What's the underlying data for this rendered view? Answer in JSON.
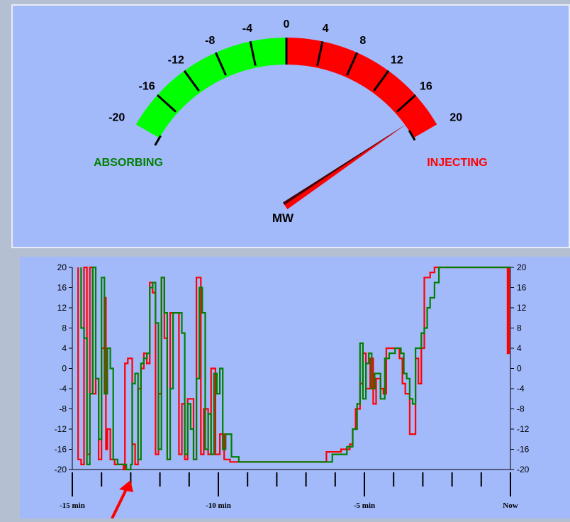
{
  "gauge": {
    "min": -20,
    "max": 20,
    "value": 18,
    "tick_values": [
      -20,
      -16,
      -12,
      -8,
      -4,
      0,
      4,
      8,
      12,
      16,
      20
    ],
    "tick_labels": [
      "-20",
      "-16",
      "-12",
      "-8",
      "-4",
      "0",
      "4",
      "8",
      "12",
      "16",
      "20"
    ],
    "unit": "MW",
    "left_label": "ABSORBING",
    "right_label": "INJECTING",
    "colors": {
      "negative": "#00ff00",
      "positive": "#ff0000",
      "left_text": "#008000",
      "right_text": "#ff0000",
      "needle": "#ff0000",
      "needle_shadow": "#4a0000"
    }
  },
  "chart_data": {
    "type": "line",
    "title": "",
    "xlabel": "",
    "ylabel": "",
    "xlim": [
      -15,
      0
    ],
    "ylim": [
      -20,
      20
    ],
    "y_ticks": [
      20,
      16,
      12,
      8,
      4,
      0,
      -4,
      -8,
      -12,
      -16,
      -20
    ],
    "y_tick_labels": [
      "20",
      "16",
      "12",
      "8",
      "4",
      "0",
      "-4",
      "-8",
      "-12",
      "-16",
      "-20"
    ],
    "x_tick_labels": [
      {
        "x": -15,
        "label": "-15 min"
      },
      {
        "x": -10,
        "label": "-10 min"
      },
      {
        "x": -5,
        "label": "-5 min"
      },
      {
        "x": 0,
        "label": "Now"
      }
    ],
    "x_minor_ticks": [
      -15,
      -14,
      -13,
      -12,
      -11,
      -10,
      -9,
      -8,
      -7,
      -6,
      -5,
      -4,
      -3,
      -2,
      -1,
      0
    ],
    "grid": false,
    "series": [
      {
        "color": "#ff0000",
        "points": [
          [
            -14.8,
            20
          ],
          [
            -14.8,
            -18
          ],
          [
            -14.7,
            -18
          ],
          [
            -14.7,
            -19
          ],
          [
            -14.6,
            -19
          ],
          [
            -14.6,
            20
          ],
          [
            -14.5,
            20
          ],
          [
            -14.5,
            -17
          ],
          [
            -14.4,
            -17
          ],
          [
            -14.4,
            20
          ],
          [
            -14.3,
            20
          ],
          [
            -14.3,
            -5
          ],
          [
            -14.2,
            -5
          ],
          [
            -14.2,
            -2
          ],
          [
            -14.1,
            -2
          ],
          [
            -14.1,
            -18
          ],
          [
            -14.0,
            -18
          ],
          [
            -14.0,
            4
          ],
          [
            -13.9,
            4
          ],
          [
            -13.9,
            14
          ],
          [
            -13.85,
            14
          ],
          [
            -13.85,
            -16
          ],
          [
            -13.8,
            -16
          ],
          [
            -13.8,
            -12
          ],
          [
            -13.7,
            -12
          ],
          [
            -13.7,
            -18
          ],
          [
            -13.55,
            -18
          ],
          [
            -13.55,
            -19
          ],
          [
            -13.25,
            -19
          ],
          [
            -13.25,
            -20
          ],
          [
            -13.2,
            -20
          ],
          [
            -13.2,
            1
          ],
          [
            -13.1,
            1
          ],
          [
            -13.1,
            2
          ],
          [
            -12.95,
            2
          ],
          [
            -12.95,
            -15
          ],
          [
            -12.85,
            -15
          ],
          [
            -12.85,
            -19
          ],
          [
            -12.75,
            -19
          ],
          [
            -12.75,
            -4
          ],
          [
            -12.65,
            -4
          ],
          [
            -12.65,
            0
          ],
          [
            -12.55,
            0
          ],
          [
            -12.55,
            3
          ],
          [
            -12.45,
            3
          ],
          [
            -12.45,
            1
          ],
          [
            -12.35,
            1
          ],
          [
            -12.35,
            17
          ],
          [
            -12.25,
            17
          ],
          [
            -12.25,
            15
          ],
          [
            -12.15,
            15
          ],
          [
            -12.15,
            -17
          ],
          [
            -12.05,
            -17
          ],
          [
            -12.05,
            -5
          ],
          [
            -11.95,
            -5
          ],
          [
            -11.95,
            18
          ],
          [
            -11.85,
            18
          ],
          [
            -11.85,
            6
          ],
          [
            -11.75,
            6
          ],
          [
            -11.75,
            -18
          ],
          [
            -11.65,
            -18
          ],
          [
            -11.65,
            11
          ],
          [
            -11.35,
            11
          ],
          [
            -11.35,
            -17
          ],
          [
            -11.25,
            -17
          ],
          [
            -11.25,
            -7
          ],
          [
            -11.15,
            -7
          ],
          [
            -11.15,
            -18
          ],
          [
            -11.05,
            -18
          ],
          [
            -11.05,
            -6
          ],
          [
            -10.85,
            -6
          ],
          [
            -10.85,
            -18
          ],
          [
            -10.75,
            -18
          ],
          [
            -10.75,
            18
          ],
          [
            -10.6,
            18
          ],
          [
            -10.6,
            -17
          ],
          [
            -10.5,
            -17
          ],
          [
            -10.5,
            -8
          ],
          [
            -10.35,
            -8
          ],
          [
            -10.35,
            -17
          ],
          [
            -10.25,
            -17
          ],
          [
            -10.25,
            0
          ],
          [
            -10.1,
            0
          ],
          [
            -10.1,
            -17
          ],
          [
            -9.95,
            -17
          ],
          [
            -9.95,
            -13
          ],
          [
            -9.8,
            -13
          ],
          [
            -9.8,
            -18
          ],
          [
            -9.6,
            -18
          ],
          [
            -9.6,
            -18.5
          ],
          [
            -6.3,
            -18.5
          ],
          [
            -6.3,
            -16.5
          ],
          [
            -5.8,
            -16.5
          ],
          [
            -5.8,
            -16
          ],
          [
            -5.5,
            -16
          ],
          [
            -5.5,
            -15
          ],
          [
            -5.4,
            -15
          ],
          [
            -5.4,
            -12
          ],
          [
            -5.3,
            -12
          ],
          [
            -5.3,
            -8
          ],
          [
            -5.15,
            -8
          ],
          [
            -5.15,
            -3
          ],
          [
            -5.05,
            -3
          ],
          [
            -5.05,
            3
          ],
          [
            -4.95,
            3
          ],
          [
            -4.95,
            -4
          ],
          [
            -4.8,
            -4
          ],
          [
            -4.8,
            2
          ],
          [
            -4.7,
            2
          ],
          [
            -4.7,
            -7
          ],
          [
            -4.6,
            -7
          ],
          [
            -4.6,
            -2
          ],
          [
            -4.45,
            -2
          ],
          [
            -4.45,
            -4
          ],
          [
            -4.35,
            -4
          ],
          [
            -4.35,
            -5
          ],
          [
            -4.25,
            -5
          ],
          [
            -4.25,
            4
          ],
          [
            -3.8,
            4
          ],
          [
            -3.8,
            2
          ],
          [
            -3.7,
            2
          ],
          [
            -3.7,
            -3
          ],
          [
            -3.6,
            -3
          ],
          [
            -3.6,
            -5
          ],
          [
            -3.45,
            -5
          ],
          [
            -3.45,
            -13
          ],
          [
            -3.25,
            -13
          ],
          [
            -3.25,
            2
          ],
          [
            -3.15,
            2
          ],
          [
            -3.15,
            -3
          ],
          [
            -3.05,
            -3
          ],
          [
            -3.05,
            4
          ],
          [
            -2.95,
            4
          ],
          [
            -2.95,
            18
          ],
          [
            -2.75,
            18
          ],
          [
            -2.75,
            19
          ],
          [
            -2.6,
            19
          ],
          [
            -2.6,
            20
          ],
          [
            -0.1,
            20
          ],
          [
            -0.1,
            3
          ],
          [
            -0.05,
            3
          ],
          [
            -0.05,
            20
          ],
          [
            0,
            20
          ]
        ]
      },
      {
        "color": "#008000",
        "points": [
          [
            -14.7,
            20
          ],
          [
            -14.7,
            8
          ],
          [
            -14.6,
            8
          ],
          [
            -14.6,
            6
          ],
          [
            -14.5,
            6
          ],
          [
            -14.5,
            -19
          ],
          [
            -14.4,
            -19
          ],
          [
            -14.4,
            -5
          ],
          [
            -14.3,
            -5
          ],
          [
            -14.3,
            20
          ],
          [
            -14.2,
            20
          ],
          [
            -14.2,
            -2
          ],
          [
            -14.1,
            -2
          ],
          [
            -14.1,
            -14
          ],
          [
            -14.0,
            -14
          ],
          [
            -14.0,
            18
          ],
          [
            -13.9,
            18
          ],
          [
            -13.9,
            -5
          ],
          [
            -13.8,
            -5
          ],
          [
            -13.8,
            4
          ],
          [
            -13.7,
            4
          ],
          [
            -13.7,
            0
          ],
          [
            -13.6,
            0
          ],
          [
            -13.6,
            -18
          ],
          [
            -13.45,
            -18
          ],
          [
            -13.45,
            -19
          ],
          [
            -13.15,
            -19
          ],
          [
            -13.15,
            -20
          ],
          [
            -13.0,
            -20
          ],
          [
            -13.0,
            -19
          ],
          [
            -12.95,
            -19
          ],
          [
            -12.95,
            -3
          ],
          [
            -12.85,
            -3
          ],
          [
            -12.85,
            -1
          ],
          [
            -12.75,
            -1
          ],
          [
            -12.75,
            -18
          ],
          [
            -12.65,
            -18
          ],
          [
            -12.65,
            1
          ],
          [
            -12.55,
            1
          ],
          [
            -12.55,
            2
          ],
          [
            -12.45,
            2
          ],
          [
            -12.45,
            3
          ],
          [
            -12.35,
            3
          ],
          [
            -12.35,
            16
          ],
          [
            -12.25,
            16
          ],
          [
            -12.25,
            17
          ],
          [
            -12.15,
            17
          ],
          [
            -12.15,
            9
          ],
          [
            -12.05,
            9
          ],
          [
            -12.05,
            -16
          ],
          [
            -11.95,
            -16
          ],
          [
            -11.95,
            18
          ],
          [
            -11.85,
            18
          ],
          [
            -11.85,
            11
          ],
          [
            -11.75,
            11
          ],
          [
            -11.75,
            -18
          ],
          [
            -11.65,
            -18
          ],
          [
            -11.65,
            -4
          ],
          [
            -11.55,
            -4
          ],
          [
            -11.55,
            11
          ],
          [
            -11.25,
            11
          ],
          [
            -11.25,
            7
          ],
          [
            -11.15,
            7
          ],
          [
            -11.15,
            -17
          ],
          [
            -11.05,
            -17
          ],
          [
            -11.05,
            -7
          ],
          [
            -10.95,
            -7
          ],
          [
            -10.95,
            -12
          ],
          [
            -10.85,
            -12
          ],
          [
            -10.85,
            -18
          ],
          [
            -10.75,
            -18
          ],
          [
            -10.75,
            -2
          ],
          [
            -10.65,
            -2
          ],
          [
            -10.65,
            16
          ],
          [
            -10.55,
            16
          ],
          [
            -10.55,
            11
          ],
          [
            -10.45,
            11
          ],
          [
            -10.45,
            -16
          ],
          [
            -10.35,
            -16
          ],
          [
            -10.35,
            -9
          ],
          [
            -10.25,
            -9
          ],
          [
            -10.25,
            -17
          ],
          [
            -10.15,
            -17
          ],
          [
            -10.15,
            -1
          ],
          [
            -10.05,
            -1
          ],
          [
            -10.05,
            -5
          ],
          [
            -9.95,
            -5
          ],
          [
            -9.95,
            0
          ],
          [
            -9.85,
            0
          ],
          [
            -9.85,
            -16
          ],
          [
            -9.75,
            -16
          ],
          [
            -9.75,
            -13
          ],
          [
            -9.55,
            -13
          ],
          [
            -9.55,
            -17.5
          ],
          [
            -9.3,
            -17.5
          ],
          [
            -9.3,
            -18.5
          ],
          [
            -7.7,
            -18.5
          ],
          [
            -7.7,
            -18.5
          ],
          [
            -6.1,
            -18.5
          ],
          [
            -6.1,
            -17
          ],
          [
            -5.6,
            -17
          ],
          [
            -5.6,
            -15.5
          ],
          [
            -5.4,
            -15.5
          ],
          [
            -5.4,
            -12
          ],
          [
            -5.25,
            -12
          ],
          [
            -5.25,
            -7
          ],
          [
            -5.15,
            -7
          ],
          [
            -5.15,
            5
          ],
          [
            -5.05,
            5
          ],
          [
            -5.05,
            -6
          ],
          [
            -4.95,
            -6
          ],
          [
            -4.95,
            1
          ],
          [
            -4.85,
            1
          ],
          [
            -4.85,
            3
          ],
          [
            -4.75,
            3
          ],
          [
            -4.75,
            -4
          ],
          [
            -4.65,
            -4
          ],
          [
            -4.65,
            -1
          ],
          [
            -4.45,
            -1
          ],
          [
            -4.45,
            -6
          ],
          [
            -4.3,
            -6
          ],
          [
            -4.3,
            2
          ],
          [
            -4.15,
            2
          ],
          [
            -4.15,
            3
          ],
          [
            -3.95,
            3
          ],
          [
            -3.95,
            4
          ],
          [
            -3.75,
            4
          ],
          [
            -3.75,
            3
          ],
          [
            -3.65,
            3
          ],
          [
            -3.65,
            -1
          ],
          [
            -3.55,
            -1
          ],
          [
            -3.55,
            -2
          ],
          [
            -3.45,
            -2
          ],
          [
            -3.45,
            -6
          ],
          [
            -3.35,
            -6
          ],
          [
            -3.35,
            -7
          ],
          [
            -3.25,
            -7
          ],
          [
            -3.25,
            4
          ],
          [
            -3.05,
            4
          ],
          [
            -3.05,
            7
          ],
          [
            -2.95,
            7
          ],
          [
            -2.95,
            8
          ],
          [
            -2.85,
            8
          ],
          [
            -2.85,
            12
          ],
          [
            -2.75,
            12
          ],
          [
            -2.75,
            14
          ],
          [
            -2.6,
            14
          ],
          [
            -2.6,
            17
          ],
          [
            -2.45,
            17
          ],
          [
            -2.45,
            20
          ],
          [
            0,
            20
          ]
        ]
      }
    ]
  }
}
